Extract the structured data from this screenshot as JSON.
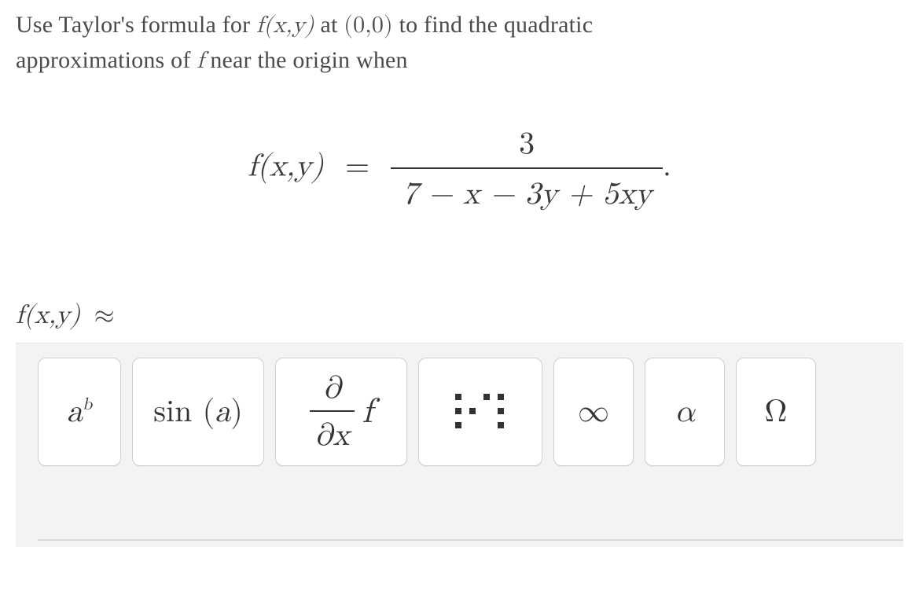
{
  "prompt": {
    "line1_pre": "Use Taylor's formula for ",
    "fxy": "f(x,y)",
    "at_word": " at ",
    "origin": "(0,0)",
    "line1_post": " to find the quadratic",
    "line2_pre": "approximations of ",
    "f_sym": "f",
    "line2_post": " near the origin when"
  },
  "formula": {
    "lhs": "f(x,y)",
    "eq": "=",
    "num": "3",
    "den": "7 − x − 3y + 5xy",
    "period": "."
  },
  "answer": {
    "label": "f(x,y)",
    "approx": "≈"
  },
  "toolbar": {
    "exp_base": "a",
    "exp_sup": "b",
    "trig": "sin",
    "trig_arg_l": "(",
    "trig_arg": "a",
    "trig_arg_r": ")",
    "partial_top": "∂",
    "partial_bot": "∂x",
    "partial_fn": "f",
    "infinity": "∞",
    "alpha": "α",
    "omega": "Ω"
  }
}
